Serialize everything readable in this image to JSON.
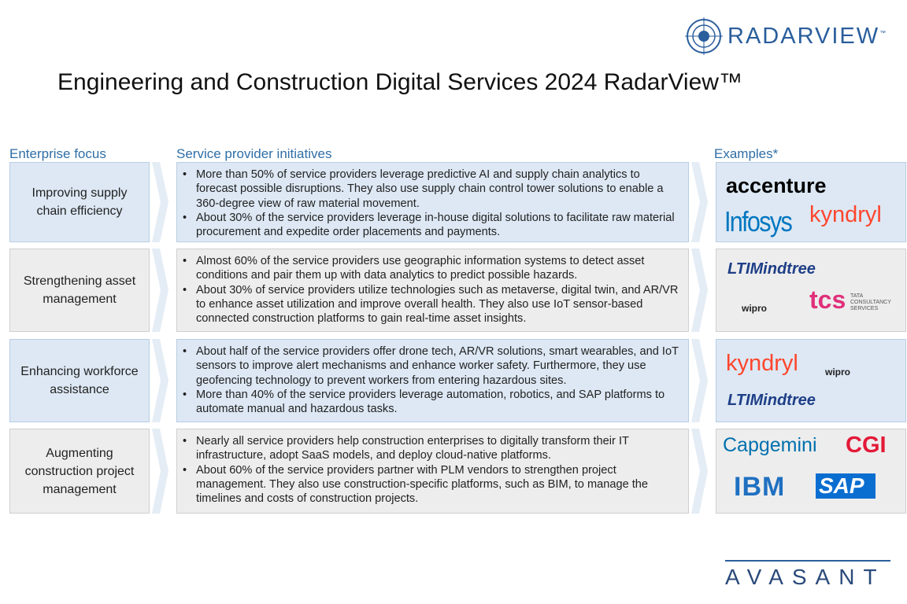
{
  "header": {
    "logo": "RADARVIEW",
    "logo_tm": "™",
    "title": "Engineering and Construction Digital Services 2024 RadarView™"
  },
  "columns": [
    "Enterprise focus",
    "Service provider initiatives",
    "Examples*"
  ],
  "rows": [
    {
      "focus": "Improving supply chain efficiency",
      "initiatives": [
        "More than 50% of service providers leverage predictive AI and supply chain analytics to forecast possible disruptions. They also use supply chain control tower solutions to enable a 360-degree view of raw material movement.",
        "About 30% of the service providers leverage in-house digital solutions to facilitate raw material procurement and expedite order placements and payments."
      ],
      "examples": [
        "accenture",
        "Infosys",
        "kyndryl"
      ]
    },
    {
      "focus": "Strengthening asset management",
      "initiatives": [
        "Almost 60% of the service providers use geographic information systems to detect asset conditions and pair them up with data analytics to predict possible hazards.",
        "About 30% of service providers utilize technologies such as metaverse, digital twin, and AR/VR to enhance asset utilization and improve overall health. They also use IoT sensor-based connected construction platforms to gain real-time asset insights."
      ],
      "examples": [
        "LTIMindtree",
        "wipro",
        "tcs",
        "TATA CONSULTANCY SERVICES"
      ]
    },
    {
      "focus": "Enhancing workforce assistance",
      "initiatives": [
        "About half of the service providers offer drone tech, AR/VR solutions, smart wearables, and IoT sensors to improve alert mechanisms and enhance worker safety. Furthermore, they use geofencing technology to prevent workers from entering hazardous sites.",
        "More than 40% of the service providers leverage automation, robotics, and SAP platforms to automate manual and hazardous tasks."
      ],
      "examples": [
        "kyndryl",
        "wipro",
        "LTIMindtree"
      ]
    },
    {
      "focus": "Augmenting construction project management",
      "initiatives": [
        "Nearly all service providers help construction enterprises to digitally transform their IT infrastructure, adopt SaaS models, and deploy cloud-native platforms.",
        "About 60% of the service providers partner with PLM vendors to strengthen project management. They also use construction-specific platforms, such as BIM, to manage the timelines and costs of construction projects."
      ],
      "examples": [
        "Capgemini",
        "CGI",
        "IBM",
        "SAP"
      ]
    }
  ],
  "footer": "AVASANT"
}
